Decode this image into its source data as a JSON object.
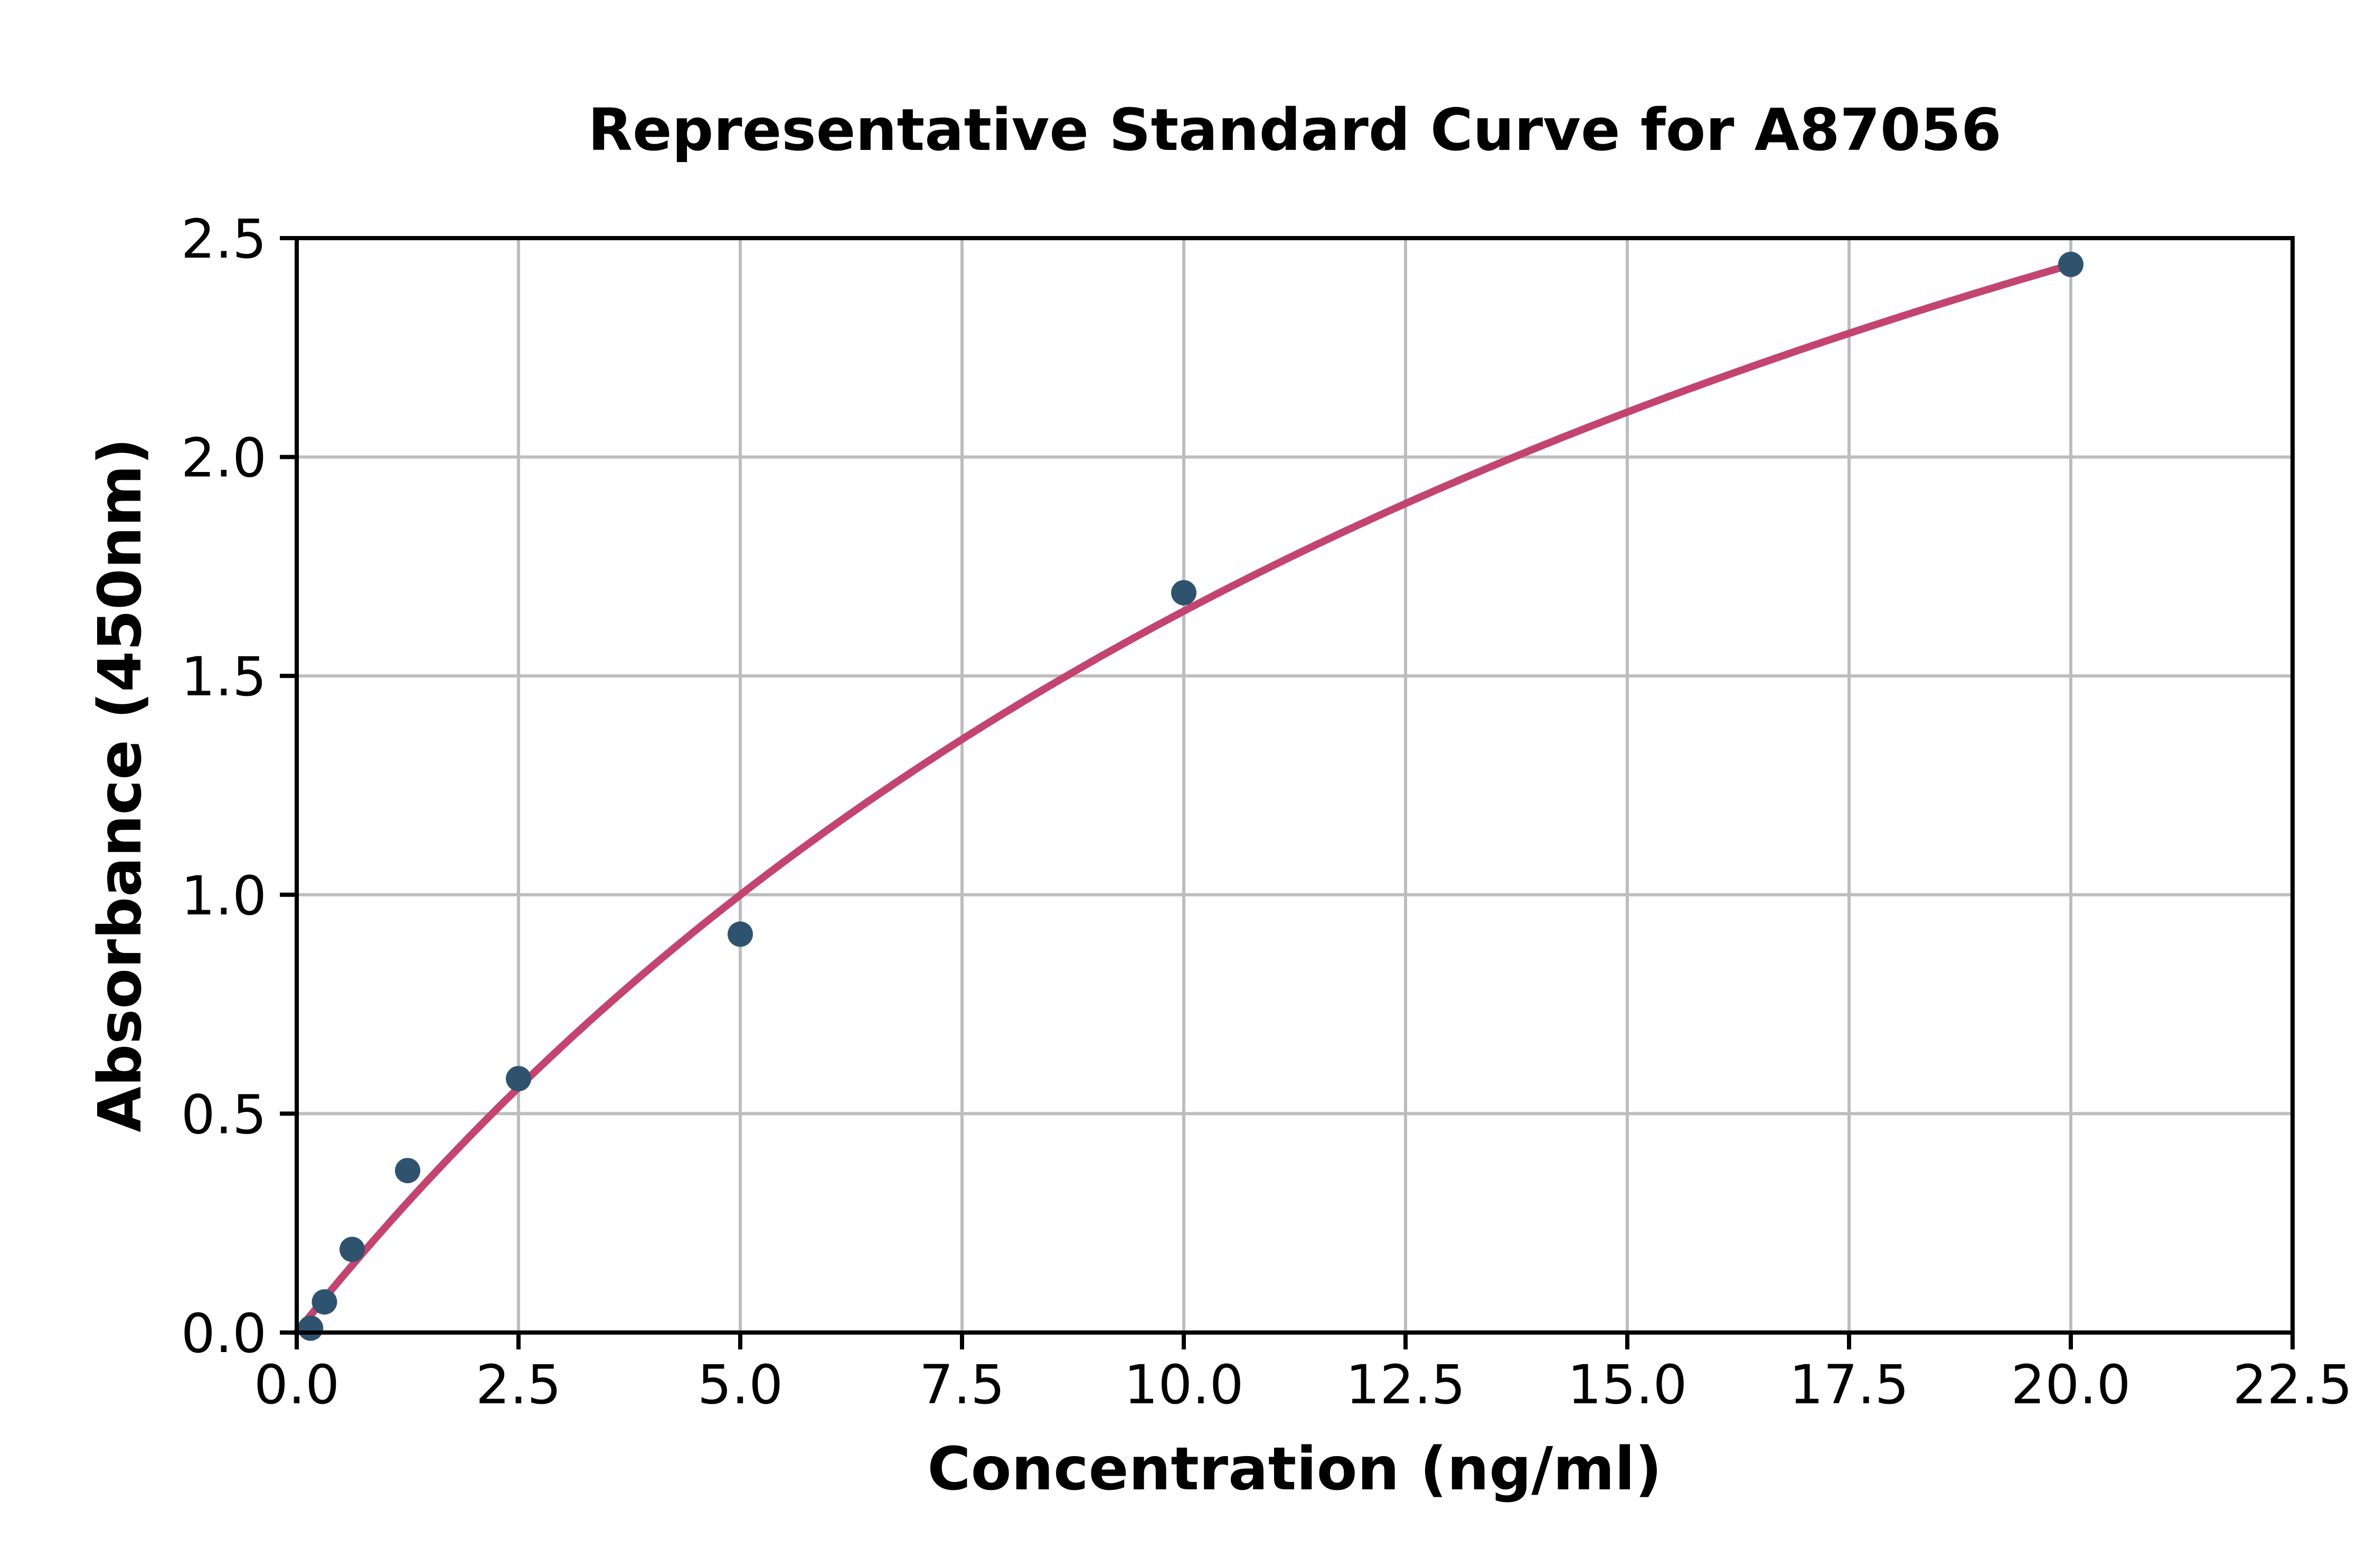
{
  "figure": {
    "title": "Representative Standard Curve for A87056",
    "x_axis_label": "Concentration (ng/ml)",
    "y_axis_label": "Absorbance (450nm)"
  },
  "chart_data": {
    "type": "scatter",
    "title": "Representative Standard Curve for A87056",
    "xlabel": "Concentration (ng/ml)",
    "ylabel": "Absorbance (450nm)",
    "xlim": [
      0,
      22.5
    ],
    "ylim": [
      0,
      2.5
    ],
    "x_ticks": [
      0,
      2.5,
      5,
      7.5,
      10,
      12.5,
      15,
      17.5,
      20,
      22.5
    ],
    "x_tick_labels": [
      "0.0",
      "2.5",
      "5.0",
      "7.5",
      "10.0",
      "12.5",
      "15.0",
      "17.5",
      "20.0",
      "22.5"
    ],
    "y_ticks": [
      0,
      0.5,
      1,
      1.5,
      2,
      2.5
    ],
    "y_tick_labels": [
      "0.0",
      "0.5",
      "1.0",
      "1.5",
      "2.0",
      "2.5"
    ],
    "grid": true,
    "legend": "none",
    "series": [
      {
        "name": "standard-points",
        "type": "scatter",
        "x": [
          0.156,
          0.3125,
          0.625,
          1.25,
          2.5,
          5.0,
          10.0,
          20.0
        ],
        "y": [
          0.01,
          0.07,
          0.19,
          0.37,
          0.58,
          0.91,
          1.69,
          2.44
        ]
      },
      {
        "name": "fitted-curve",
        "type": "line",
        "fit": {
          "model": "y = Vmax*x/(K+x)",
          "vmax": 4.69,
          "k": 18.46,
          "x_min": 0,
          "x_max": 20
        }
      }
    ],
    "colors": {
      "marker": "#2F536F",
      "curve": "#C3456F",
      "grid": "#BDBDBD",
      "axis": "#000000"
    }
  }
}
